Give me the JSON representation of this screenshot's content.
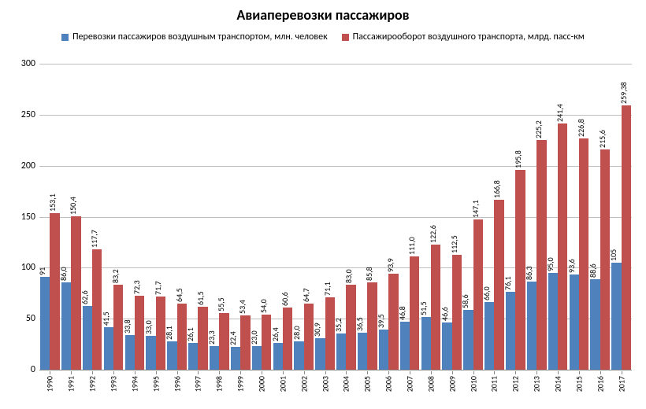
{
  "chart": {
    "title": "Авиаперевозки пассажиров",
    "title_fontsize": 18,
    "background_color": "#ffffff",
    "grid_color": "#bfbfbf",
    "baseline_color": "#898989",
    "type": "bar",
    "legend": {
      "series1": {
        "label": "Перевозки пассажиров воздушным транспортом, млн. человек",
        "color": "#4f81bd"
      },
      "series2": {
        "label": "Пассажирооборот воздушного транспорта, млрд. пасс-км",
        "color": "#c0504d"
      }
    },
    "y_axis": {
      "min": 0,
      "max": 300,
      "step": 50,
      "ticks_text": [
        "0",
        "50",
        "100",
        "150",
        "200",
        "250",
        "300"
      ]
    },
    "years": [
      "1990",
      "1991",
      "1992",
      "1993",
      "1994",
      "1995",
      "1996",
      "1997",
      "1998",
      "1999",
      "2000",
      "2001",
      "2002",
      "2003",
      "2004",
      "2005",
      "2006",
      "2007",
      "2008",
      "2009",
      "2010",
      "2011",
      "2012",
      "2013",
      "2014",
      "2015",
      "2016",
      "2017"
    ],
    "series1_values": [
      91,
      86.0,
      62.6,
      41.5,
      33.8,
      33.0,
      28.1,
      26.1,
      23.3,
      22.4,
      23.0,
      26.4,
      28.0,
      30.9,
      35.2,
      36.5,
      39.5,
      46.8,
      51.5,
      46.6,
      58.6,
      66.0,
      76.1,
      86.3,
      95.0,
      93.6,
      88.6,
      105
    ],
    "series1_labels": [
      "91",
      "86,0",
      "62,6",
      "41,5",
      "33,8",
      "33,0",
      "28,1",
      "26,1",
      "23,3",
      "22,4",
      "23,0",
      "26,4",
      "28,0",
      "30,9",
      "35,2",
      "36,5",
      "39,5",
      "46,8",
      "51,5",
      "46,6",
      "58,6",
      "66,0",
      "76,1",
      "86,3",
      "95,0",
      "93,6",
      "88,6",
      "105"
    ],
    "series2_values": [
      153.1,
      150.4,
      117.7,
      83.2,
      72.3,
      71.7,
      64.5,
      61.5,
      55.5,
      53.4,
      54.0,
      60.6,
      64.7,
      71.1,
      83.0,
      85.8,
      93.9,
      111.0,
      122.6,
      112.5,
      147.1,
      166.8,
      195.8,
      225.2,
      241.4,
      226.8,
      215.6,
      259.38
    ],
    "series2_labels": [
      "153,1",
      "150,4",
      "117,7",
      "83,2",
      "72,3",
      "71,7",
      "64,5",
      "61,5",
      "55,5",
      "53,4",
      "54,0",
      "60,6",
      "64,7",
      "71,1",
      "83,0",
      "85,8",
      "93,9",
      "111,0",
      "122,6",
      "112,5",
      "147,1",
      "166,8",
      "195,8",
      "225,2",
      "241,4",
      "226,8",
      "215,6",
      "259,38"
    ]
  }
}
